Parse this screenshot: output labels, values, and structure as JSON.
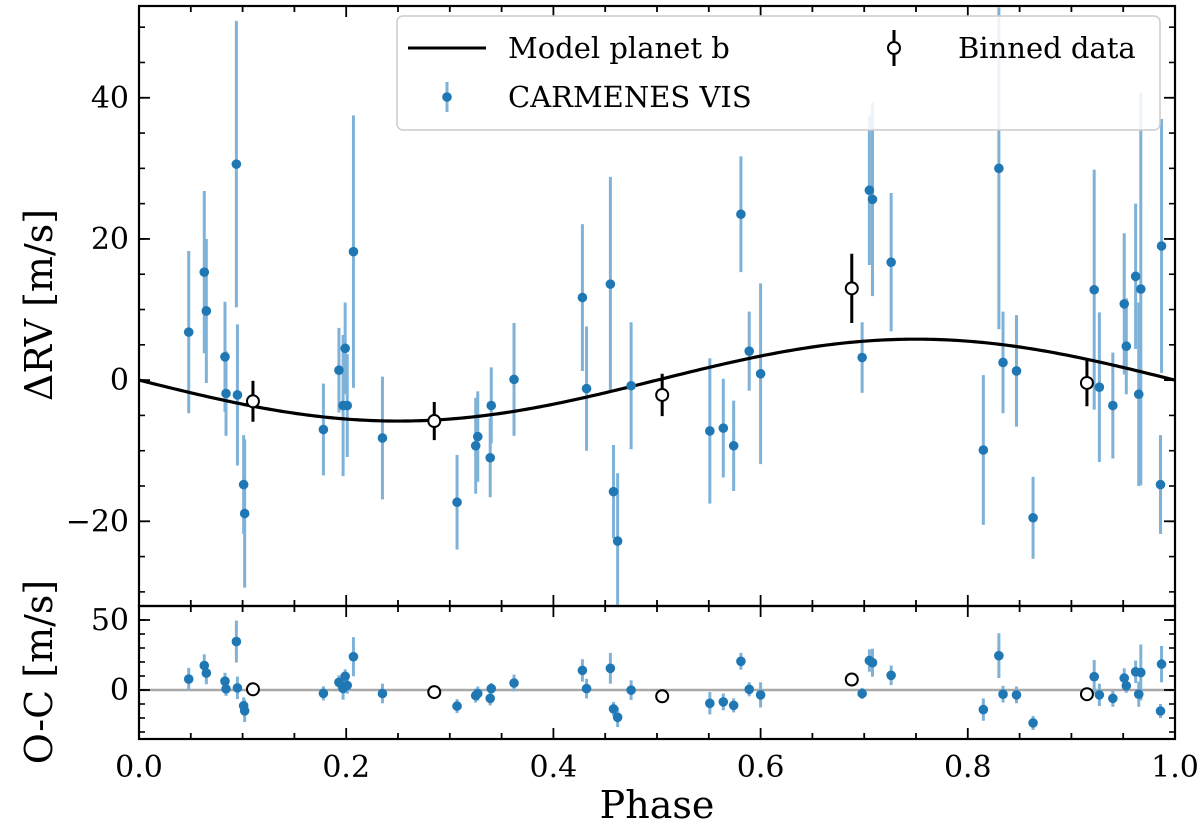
{
  "chart_data": [
    {
      "panel": "top",
      "type": "scatter",
      "xlabel": "Phase",
      "ylabel": "ΔRV [m/s]",
      "xlim": [
        0.0,
        1.0
      ],
      "ylim": [
        -32,
        53
      ],
      "xticks": [
        "0.0",
        "0.2",
        "0.4",
        "0.6",
        "0.8",
        "1.0"
      ],
      "yticks": [
        "−20",
        "0",
        "20",
        "40"
      ],
      "legend": {
        "placement": "top-right",
        "model_label": "Model planet b",
        "binned_label": "Binned data",
        "data_label": "CARMENES VIS"
      },
      "colors": {
        "data": "#1f77b4",
        "errorbar": "#7fb2d9",
        "model": "#000000",
        "binned": "#000000",
        "zero_line": "#a8a8a8"
      },
      "model": {
        "name": "Model planet b",
        "amplitude": 5.8,
        "form": "-K*sin(2*pi*phase)"
      },
      "data_points": [
        {
          "x": 0.048,
          "y": 6.8,
          "err": 11.5
        },
        {
          "x": 0.063,
          "y": 15.3,
          "err": 11.5
        },
        {
          "x": 0.065,
          "y": 9.8,
          "err": 10.2
        },
        {
          "x": 0.083,
          "y": 3.3,
          "err": 7.8
        },
        {
          "x": 0.084,
          "y": -1.9,
          "err": 6.0
        },
        {
          "x": 0.094,
          "y": 30.6,
          "err": 20.3
        },
        {
          "x": 0.095,
          "y": -2.1,
          "err": 10.0
        },
        {
          "x": 0.101,
          "y": -14.8,
          "err": 7.0
        },
        {
          "x": 0.102,
          "y": -18.9,
          "err": 10.5
        },
        {
          "x": 0.178,
          "y": -7.0,
          "err": 6.5
        },
        {
          "x": 0.193,
          "y": 1.4,
          "err": 6.0
        },
        {
          "x": 0.197,
          "y": -3.6,
          "err": 10.0
        },
        {
          "x": 0.199,
          "y": 4.5,
          "err": 6.5
        },
        {
          "x": 0.201,
          "y": -3.6,
          "err": 7.3
        },
        {
          "x": 0.207,
          "y": 18.2,
          "err": 19.3
        },
        {
          "x": 0.235,
          "y": -8.2,
          "err": 8.7
        },
        {
          "x": 0.307,
          "y": -17.3,
          "err": 6.7
        },
        {
          "x": 0.325,
          "y": -9.3,
          "err": 6.8
        },
        {
          "x": 0.327,
          "y": -8.0,
          "err": 6.4
        },
        {
          "x": 0.339,
          "y": -11.0,
          "err": 5.6
        },
        {
          "x": 0.34,
          "y": -3.6,
          "err": 5.4
        },
        {
          "x": 0.362,
          "y": 0.1,
          "err": 8.0
        },
        {
          "x": 0.428,
          "y": 11.7,
          "err": 10.4
        },
        {
          "x": 0.432,
          "y": -1.2,
          "err": 8.8
        },
        {
          "x": 0.455,
          "y": 13.6,
          "err": 15.2
        },
        {
          "x": 0.458,
          "y": -15.8,
          "err": 6.6
        },
        {
          "x": 0.462,
          "y": -22.8,
          "err": 9.6
        },
        {
          "x": 0.475,
          "y": -0.8,
          "err": 9.0
        },
        {
          "x": 0.551,
          "y": -7.2,
          "err": 10.3
        },
        {
          "x": 0.564,
          "y": -6.8,
          "err": 7.0
        },
        {
          "x": 0.574,
          "y": -9.3,
          "err": 6.4
        },
        {
          "x": 0.581,
          "y": 23.5,
          "err": 8.2
        },
        {
          "x": 0.589,
          "y": 4.1,
          "err": 5.6
        },
        {
          "x": 0.6,
          "y": 0.9,
          "err": 12.8
        },
        {
          "x": 0.698,
          "y": 3.2,
          "err": 5.0
        },
        {
          "x": 0.705,
          "y": 26.9,
          "err": 10.6
        },
        {
          "x": 0.708,
          "y": 25.6,
          "err": 13.7
        },
        {
          "x": 0.726,
          "y": 16.7,
          "err": 9.8
        },
        {
          "x": 0.815,
          "y": -9.9,
          "err": 10.6
        },
        {
          "x": 0.83,
          "y": 30.0,
          "err": 22.8
        },
        {
          "x": 0.834,
          "y": 2.5,
          "err": 7.2
        },
        {
          "x": 0.847,
          "y": 1.3,
          "err": 7.9
        },
        {
          "x": 0.863,
          "y": -19.5,
          "err": 5.8
        },
        {
          "x": 0.922,
          "y": 12.8,
          "err": 17.0
        },
        {
          "x": 0.927,
          "y": -1.0,
          "err": 10.6
        },
        {
          "x": 0.94,
          "y": -3.6,
          "err": 7.5
        },
        {
          "x": 0.951,
          "y": 10.8,
          "err": 10.0
        },
        {
          "x": 0.953,
          "y": 4.8,
          "err": 6.8
        },
        {
          "x": 0.962,
          "y": 14.7,
          "err": 10.3
        },
        {
          "x": 0.965,
          "y": -2.0,
          "err": 13.0
        },
        {
          "x": 0.967,
          "y": 12.9,
          "err": 27.8
        },
        {
          "x": 0.986,
          "y": -14.8,
          "err": 7.0
        },
        {
          "x": 0.987,
          "y": 19.0,
          "err": 18.0
        }
      ],
      "binned_points": [
        {
          "x": 0.11,
          "y": -3.0,
          "err": 2.9
        },
        {
          "x": 0.285,
          "y": -5.8,
          "err": 2.7
        },
        {
          "x": 0.505,
          "y": -2.1,
          "err": 3.0
        },
        {
          "x": 0.688,
          "y": 13.0,
          "err": 4.9
        },
        {
          "x": 0.915,
          "y": -0.4,
          "err": 3.3
        }
      ]
    },
    {
      "panel": "bottom",
      "type": "scatter",
      "xlabel": "Phase",
      "ylabel": "O-C [m/s]",
      "xlim": [
        0.0,
        1.0
      ],
      "ylim": [
        -35,
        60
      ],
      "xticks": [
        "0.0",
        "0.2",
        "0.4",
        "0.6",
        "0.8",
        "1.0"
      ],
      "yticks": [
        "0",
        "50"
      ],
      "zero_line": true,
      "data_points": [
        {
          "x": 0.048,
          "y": 7.8,
          "err": 8
        },
        {
          "x": 0.063,
          "y": 17.5,
          "err": 8
        },
        {
          "x": 0.065,
          "y": 12.1,
          "err": 8
        },
        {
          "x": 0.083,
          "y": 6.3,
          "err": 6
        },
        {
          "x": 0.084,
          "y": 0.8,
          "err": 5
        },
        {
          "x": 0.094,
          "y": 34.6,
          "err": 15
        },
        {
          "x": 0.095,
          "y": 1.5,
          "err": 8
        },
        {
          "x": 0.101,
          "y": -11.3,
          "err": 6
        },
        {
          "x": 0.102,
          "y": -14.9,
          "err": 8
        },
        {
          "x": 0.178,
          "y": -2.4,
          "err": 5
        },
        {
          "x": 0.193,
          "y": 5.5,
          "err": 5
        },
        {
          "x": 0.197,
          "y": 1.1,
          "err": 8
        },
        {
          "x": 0.199,
          "y": 9.8,
          "err": 5
        },
        {
          "x": 0.201,
          "y": 3.3,
          "err": 6
        },
        {
          "x": 0.207,
          "y": 23.8,
          "err": 14
        },
        {
          "x": 0.235,
          "y": -2.5,
          "err": 7
        },
        {
          "x": 0.307,
          "y": -11.5,
          "err": 5
        },
        {
          "x": 0.325,
          "y": -4.0,
          "err": 5
        },
        {
          "x": 0.327,
          "y": -2.5,
          "err": 5
        },
        {
          "x": 0.339,
          "y": -6.0,
          "err": 5
        },
        {
          "x": 0.34,
          "y": 1.0,
          "err": 4
        },
        {
          "x": 0.362,
          "y": 5.0,
          "err": 6
        },
        {
          "x": 0.428,
          "y": 14.0,
          "err": 8
        },
        {
          "x": 0.432,
          "y": 1.0,
          "err": 7
        },
        {
          "x": 0.455,
          "y": 15.5,
          "err": 11
        },
        {
          "x": 0.458,
          "y": -13.5,
          "err": 5
        },
        {
          "x": 0.462,
          "y": -19.5,
          "err": 7
        },
        {
          "x": 0.475,
          "y": -0.1,
          "err": 7
        },
        {
          "x": 0.551,
          "y": -9.5,
          "err": 8
        },
        {
          "x": 0.564,
          "y": -8.5,
          "err": 6
        },
        {
          "x": 0.574,
          "y": -11.0,
          "err": 5
        },
        {
          "x": 0.581,
          "y": 20.5,
          "err": 6
        },
        {
          "x": 0.589,
          "y": 0.5,
          "err": 5
        },
        {
          "x": 0.6,
          "y": -3.5,
          "err": 9
        },
        {
          "x": 0.698,
          "y": -2.5,
          "err": 4
        },
        {
          "x": 0.705,
          "y": 21.0,
          "err": 8
        },
        {
          "x": 0.708,
          "y": 19.5,
          "err": 10
        },
        {
          "x": 0.726,
          "y": 10.5,
          "err": 7
        },
        {
          "x": 0.815,
          "y": -14.0,
          "err": 8
        },
        {
          "x": 0.83,
          "y": 24.5,
          "err": 16
        },
        {
          "x": 0.834,
          "y": -3.0,
          "err": 6
        },
        {
          "x": 0.847,
          "y": -3.5,
          "err": 6
        },
        {
          "x": 0.863,
          "y": -23.5,
          "err": 5
        },
        {
          "x": 0.922,
          "y": 9.5,
          "err": 12
        },
        {
          "x": 0.927,
          "y": -3.5,
          "err": 8
        },
        {
          "x": 0.94,
          "y": -6.0,
          "err": 6
        },
        {
          "x": 0.951,
          "y": 8.5,
          "err": 7
        },
        {
          "x": 0.953,
          "y": 3.0,
          "err": 5
        },
        {
          "x": 0.962,
          "y": 13.0,
          "err": 8
        },
        {
          "x": 0.965,
          "y": -3.0,
          "err": 9
        },
        {
          "x": 0.967,
          "y": 12.5,
          "err": 20
        },
        {
          "x": 0.986,
          "y": -15.0,
          "err": 5
        },
        {
          "x": 0.987,
          "y": 18.5,
          "err": 13
        }
      ],
      "binned_points": [
        {
          "x": 0.11,
          "y": 0.5
        },
        {
          "x": 0.285,
          "y": -1.5
        },
        {
          "x": 0.505,
          "y": -4.5
        },
        {
          "x": 0.688,
          "y": 7.5
        },
        {
          "x": 0.915,
          "y": -3.0
        }
      ]
    }
  ]
}
